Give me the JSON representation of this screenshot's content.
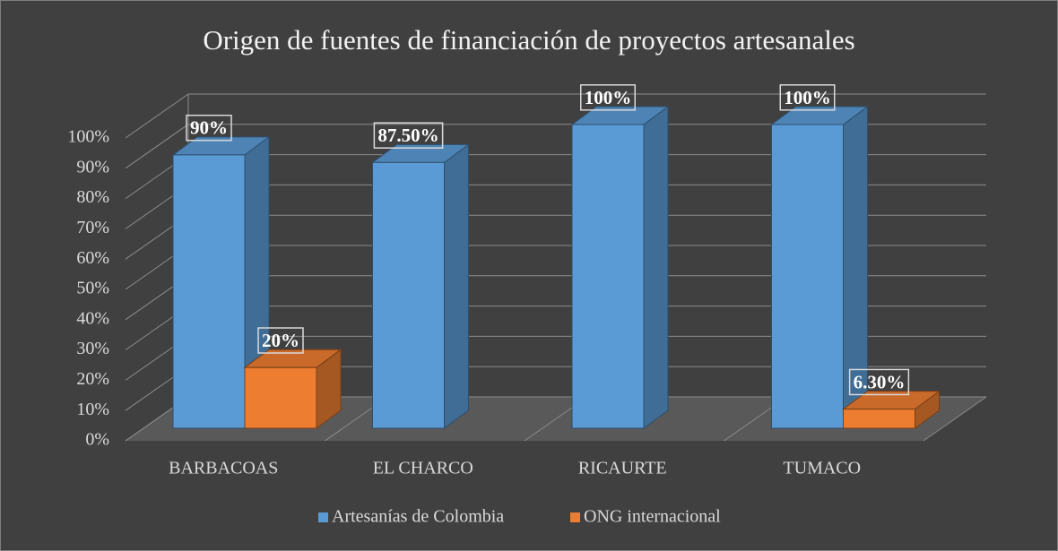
{
  "chart_data": {
    "type": "bar3d",
    "title": "Origen de fuentes de financiación de proyectos artesanales",
    "categories": [
      "BARBACOAS",
      "EL CHARCO",
      "RICAURTE",
      "TUMACO"
    ],
    "series": [
      {
        "name": "Artesanías de Colombia",
        "color": "#5b9bd5",
        "values": [
          90,
          87.5,
          100,
          100
        ],
        "value_labels": [
          "90%",
          "87.50%",
          "100%",
          "100%"
        ]
      },
      {
        "name": "ONG internacional",
        "color": "#ed7d31",
        "values": [
          20,
          null,
          null,
          6.3
        ],
        "value_labels": [
          "20%",
          null,
          null,
          "6.30%"
        ]
      }
    ],
    "ylim": [
      0,
      100
    ],
    "yticks": [
      {
        "value": 0,
        "label": "0%"
      },
      {
        "value": 10,
        "label": "10%"
      },
      {
        "value": 20,
        "label": "20%"
      },
      {
        "value": 30,
        "label": "30%"
      },
      {
        "value": 40,
        "label": "40%"
      },
      {
        "value": 50,
        "label": "50%"
      },
      {
        "value": 60,
        "label": "60%"
      },
      {
        "value": 70,
        "label": "70%"
      },
      {
        "value": 80,
        "label": "80%"
      },
      {
        "value": 90,
        "label": "90%"
      },
      {
        "value": 100,
        "label": "100%"
      }
    ],
    "grid": true,
    "legend": "bottom"
  }
}
